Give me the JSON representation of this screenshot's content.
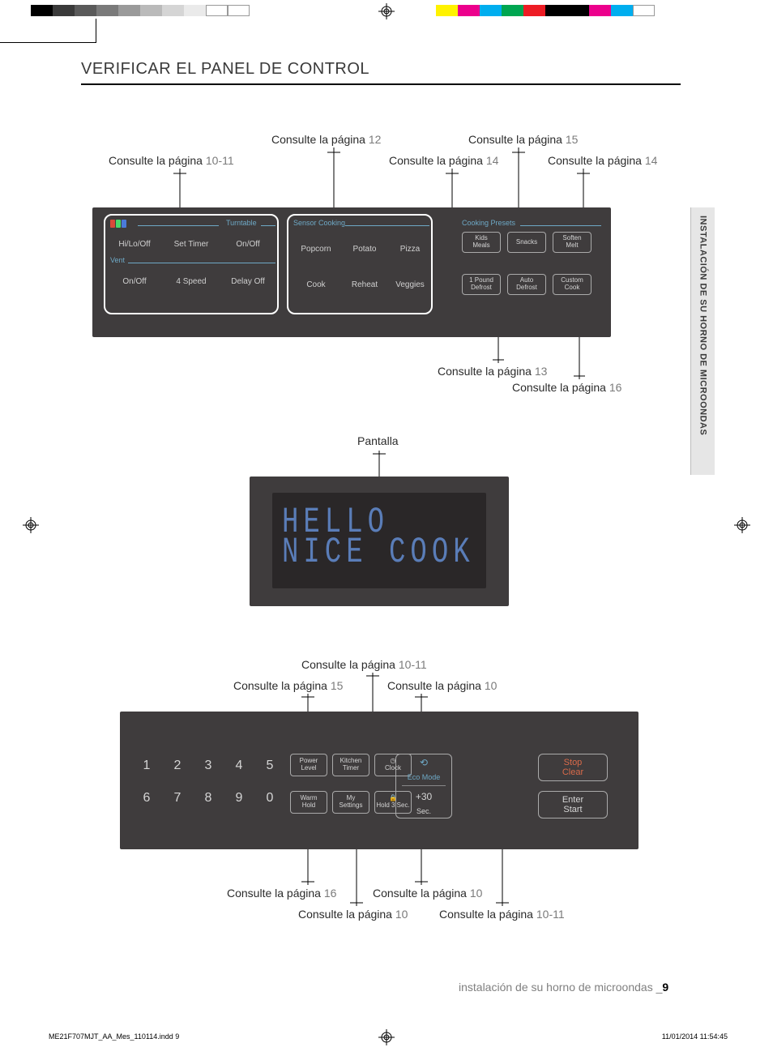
{
  "colorbar_left": [
    "#000000",
    "#3a3a3a",
    "#5a5a5a",
    "#7a7a7a",
    "#9a9a9a",
    "#bababa",
    "#d5d5d5",
    "#eaeaea",
    "#ffffff",
    "#ffffff"
  ],
  "colorbar_right": [
    "#fff200",
    "#ec008c",
    "#00aeef",
    "#00a651",
    "#ed1c24",
    "#000000",
    "#000000",
    "#ec008c",
    "#00aeef",
    "#ffffff"
  ],
  "title": "VERIFICAR EL PANEL DE CONTROL",
  "side_tab": "INSTALACIÓN DE SU HORNO DE MICROONDAS",
  "callouts": {
    "c1": {
      "text": "Consulte la página ",
      "page": "10-11"
    },
    "c2": {
      "text": "Consulte la página ",
      "page": "12"
    },
    "c3": {
      "text": "Consulte la página ",
      "page": "14"
    },
    "c4": {
      "text": "Consulte la página ",
      "page": "15"
    },
    "c5": {
      "text": "Consulte la página ",
      "page": "14"
    },
    "c6": {
      "text": "Consulte la página ",
      "page": "13"
    },
    "c7": {
      "text": "Consulte la página ",
      "page": "16"
    },
    "pantalla": "Pantalla",
    "c8": {
      "text": "Consulte la página ",
      "page": "10-11"
    },
    "c9": {
      "text": "Consulte la página ",
      "page": "15"
    },
    "c10": {
      "text": "Consulte la página ",
      "page": "10"
    },
    "c11": {
      "text": "Consulte la página ",
      "page": "16"
    },
    "c12": {
      "text": "Consulte la página ",
      "page": "10"
    },
    "c13": {
      "text": "Consulte la página ",
      "page": "10"
    },
    "c14": {
      "text": "Consulte la página ",
      "page": "10-11"
    }
  },
  "panel1": {
    "section_turntable": "Turntable",
    "section_vent": "Vent",
    "section_sensor": "Sensor Cooking",
    "section_presets": "Cooking Presets",
    "row1": [
      "Hi/Lo/Off",
      "Set Timer",
      "On/Off"
    ],
    "row2": [
      "On/Off",
      "4 Speed",
      "Delay Off"
    ],
    "sensor_row1": [
      "Popcorn",
      "Potato",
      "Pizza"
    ],
    "sensor_row2": [
      "Cook",
      "Reheat",
      "Veggies"
    ],
    "presets_row1": [
      "Kids\nMeals",
      "Snacks",
      "Soften\nMelt"
    ],
    "presets_row2": [
      "1 Pound\nDefrost",
      "Auto\nDefrost",
      "Custom\nCook"
    ]
  },
  "display": {
    "line1": "HELLO",
    "line2": "NICE COOK"
  },
  "panel3": {
    "numbers": [
      "1",
      "2",
      "3",
      "4",
      "5",
      "6",
      "7",
      "8",
      "9",
      "0"
    ],
    "fn_row1": [
      "Power\nLevel",
      "Kitchen\nTimer",
      "Clock"
    ],
    "fn_row2": [
      "Warm\nHold",
      "My\nSettings",
      "Hold 3 Sec."
    ],
    "clock_icon": "◷",
    "lock_icon": "🔒",
    "eco_icon": "⟲",
    "eco_label": "Eco Mode",
    "eco_plus30a": "+30",
    "eco_plus30b": "Sec.",
    "stop": "Stop\nClear",
    "start": "Enter\nStart"
  },
  "footer": {
    "section_text": "instalación de su horno de microondas _",
    "page_number": "9",
    "print_left": "ME21F707MJT_AA_Mes_110114.indd   9",
    "print_right": "11/01/2014   11:54:45"
  }
}
